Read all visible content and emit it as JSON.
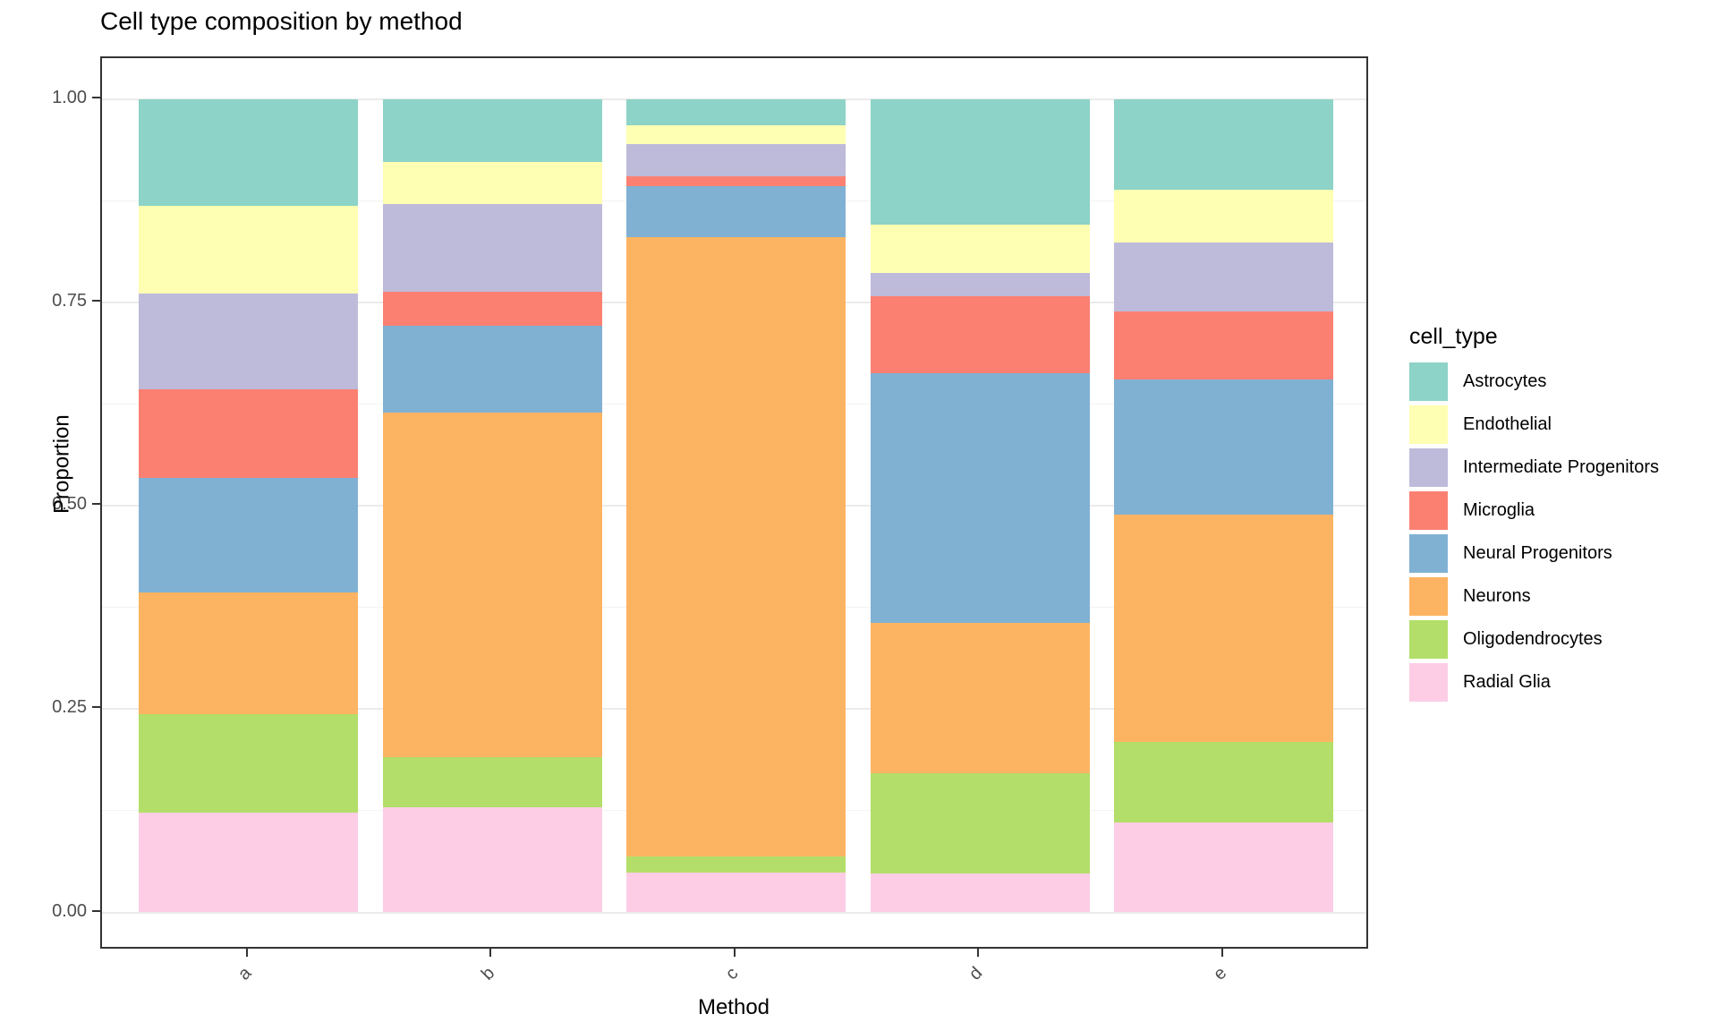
{
  "title": "Cell type composition by method",
  "x_axis": {
    "title": "Method",
    "ticks": [
      "a",
      "b",
      "c",
      "d",
      "e"
    ]
  },
  "y_axis": {
    "title": "Proportion",
    "ticks": [
      "1.00",
      "0.75",
      "0.50",
      "0.25",
      "0.00"
    ]
  },
  "legend": {
    "title": "cell_type",
    "entries": [
      {
        "label": "Astrocytes",
        "color": "#8DD3C7"
      },
      {
        "label": "Endothelial",
        "color": "#FFFFB3"
      },
      {
        "label": "Intermediate Progenitors",
        "color": "#BEBADA"
      },
      {
        "label": "Microglia",
        "color": "#FB8072"
      },
      {
        "label": "Neural Progenitors",
        "color": "#80B1D3"
      },
      {
        "label": "Neurons",
        "color": "#FDB462"
      },
      {
        "label": "Oligodendrocytes",
        "color": "#B3DE69"
      },
      {
        "label": "Radial Glia",
        "color": "#FCCDE5"
      }
    ]
  },
  "chart_data": {
    "type": "bar",
    "stacked": true,
    "title": "Cell type composition by method",
    "xlabel": "Method",
    "ylabel": "Proportion",
    "categories": [
      "a",
      "b",
      "c",
      "d",
      "e"
    ],
    "ylim": [
      0,
      1
    ],
    "y_major_ticks": [
      0,
      0.25,
      0.5,
      0.75,
      1.0
    ],
    "y_minor_gridlines": [
      0.125,
      0.375,
      0.625,
      0.875
    ],
    "grid": true,
    "legend_position": "right",
    "legend_title": "cell_type",
    "stack_order_bottom_to_top": [
      "Radial Glia",
      "Oligodendrocytes",
      "Neurons",
      "Neural Progenitors",
      "Microglia",
      "Intermediate Progenitors",
      "Endothelial",
      "Astrocytes"
    ],
    "series": [
      {
        "name": "Astrocytes",
        "color": "#8DD3C7",
        "values": [
          0.131,
          0.078,
          0.032,
          0.154,
          0.112
        ]
      },
      {
        "name": "Endothelial",
        "color": "#FFFFB3",
        "values": [
          0.108,
          0.051,
          0.024,
          0.06,
          0.065
        ]
      },
      {
        "name": "Intermediate Progenitors",
        "color": "#BEBADA",
        "values": [
          0.118,
          0.108,
          0.039,
          0.028,
          0.084
        ]
      },
      {
        "name": "Microglia",
        "color": "#FB8072",
        "values": [
          0.109,
          0.042,
          0.012,
          0.095,
          0.084
        ]
      },
      {
        "name": "Neural Progenitors",
        "color": "#80B1D3",
        "values": [
          0.141,
          0.106,
          0.063,
          0.306,
          0.166
        ]
      },
      {
        "name": "Neurons",
        "color": "#FDB462",
        "values": [
          0.149,
          0.423,
          0.76,
          0.185,
          0.279
        ]
      },
      {
        "name": "Oligodendrocytes",
        "color": "#B3DE69",
        "values": [
          0.121,
          0.062,
          0.02,
          0.123,
          0.099
        ]
      },
      {
        "name": "Radial Glia",
        "color": "#FCCDE5",
        "values": [
          0.123,
          0.129,
          0.049,
          0.048,
          0.111
        ]
      }
    ]
  }
}
